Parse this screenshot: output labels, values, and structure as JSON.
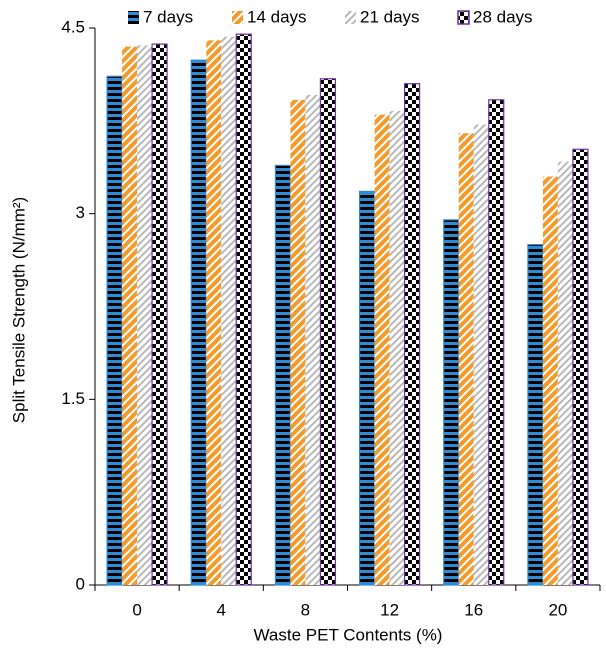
{
  "chart_data": {
    "type": "bar",
    "y_label": "Split Tensile Strength (N/mm²)",
    "x_label": "Waste PET Contents (%)",
    "categories": [
      "0",
      "4",
      "8",
      "12",
      "16",
      "20"
    ],
    "series": [
      {
        "name": "7 days",
        "color": "#2e8bd6",
        "pattern": "horizontal",
        "values": [
          4.11,
          4.24,
          3.39,
          3.18,
          2.95,
          2.75
        ]
      },
      {
        "name": "14 days",
        "color": "#f39a2b",
        "pattern": "diagonal",
        "values": [
          4.35,
          4.4,
          3.92,
          3.8,
          3.65,
          3.3
        ]
      },
      {
        "name": "21 days",
        "color": "#b8b8b8",
        "pattern": "diagonal",
        "values": [
          4.36,
          4.43,
          3.96,
          3.83,
          3.72,
          3.42
        ]
      },
      {
        "name": "28 days",
        "color": "#7030a0",
        "pattern": "checker",
        "values": [
          4.37,
          4.45,
          4.09,
          4.05,
          3.92,
          3.52
        ]
      }
    ],
    "ylim": [
      0,
      4.5
    ],
    "yticks": [
      0,
      1.5,
      3,
      4.5
    ],
    "grid": false,
    "legend": "top"
  }
}
